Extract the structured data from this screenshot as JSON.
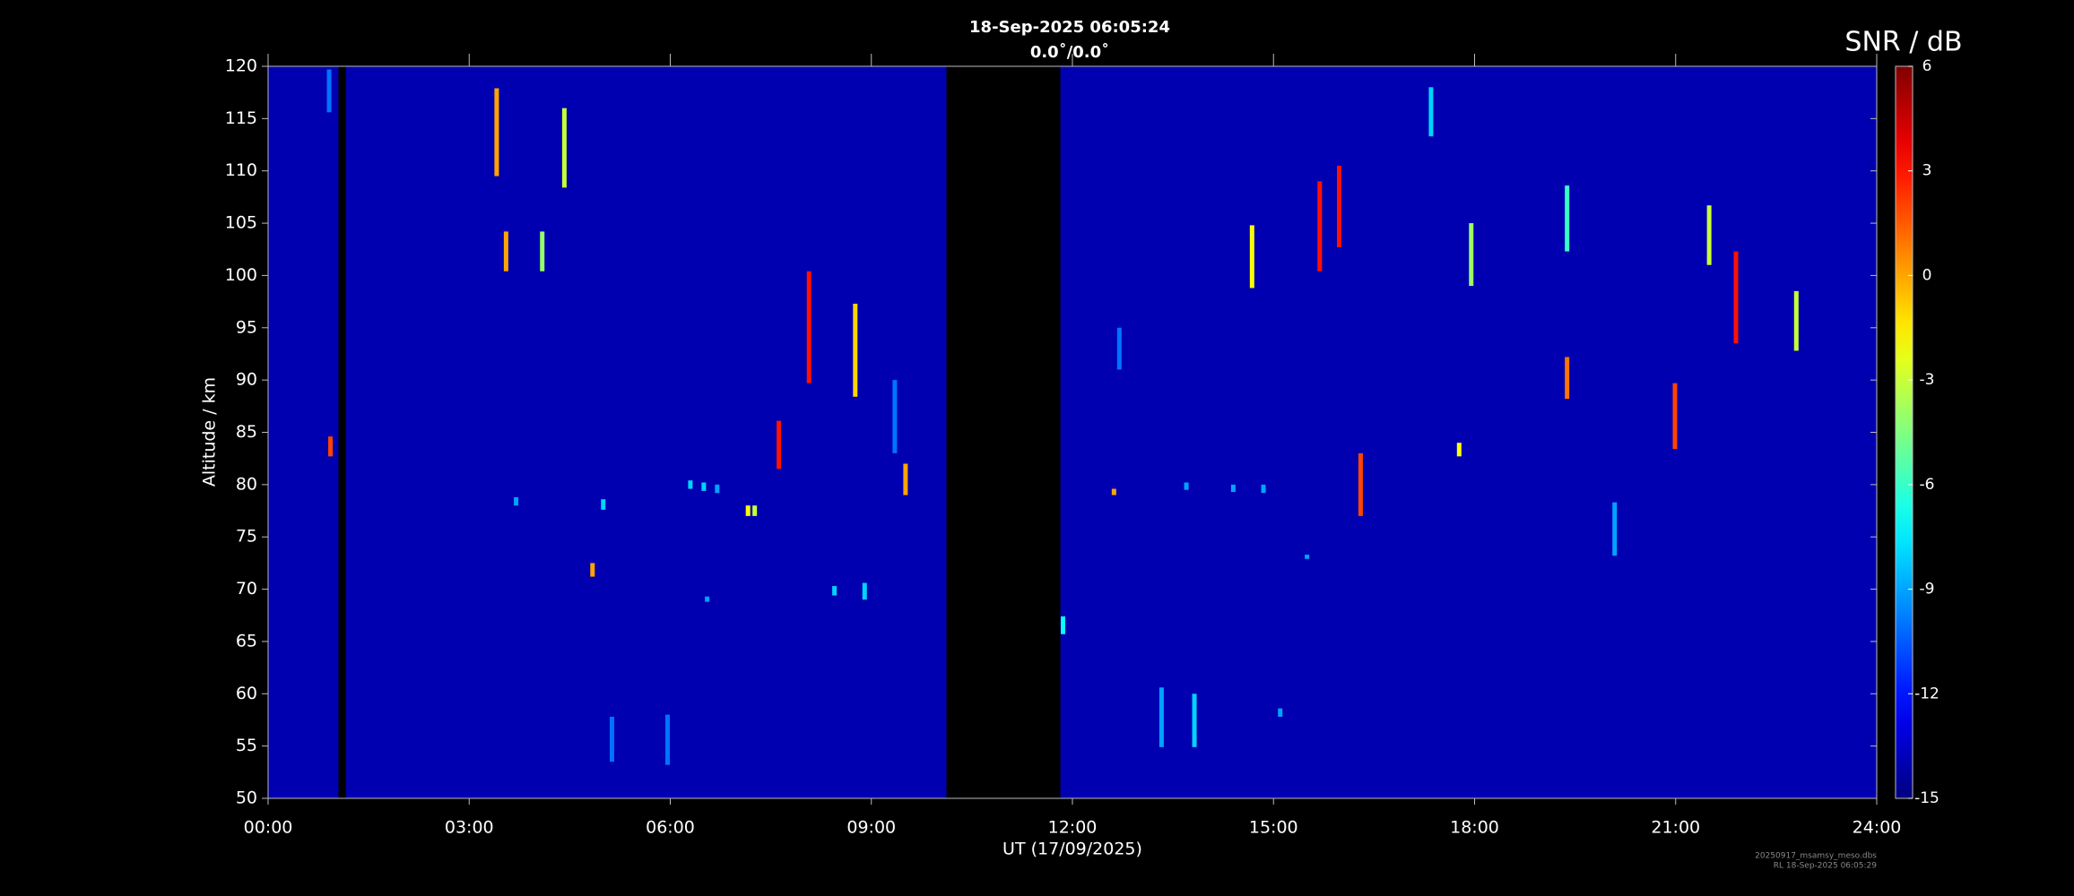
{
  "chart_data": {
    "type": "heatmap",
    "title": "18-Sep-2025 06:05:24",
    "subtitle": "0.0˚/0.0˚",
    "x_label": "UT (17/09/2025)",
    "y_label": "Altitude / km",
    "colorbar_label": "SNR / dB",
    "footer": [
      "20250917_msamsy_meso.dbs",
      "RL 18-Sep-2025 06:05:29"
    ],
    "xlim": [
      0,
      24
    ],
    "xticks": [
      {
        "value": 0,
        "label": "00:00"
      },
      {
        "value": 3,
        "label": "03:00"
      },
      {
        "value": 6,
        "label": "06:00"
      },
      {
        "value": 9,
        "label": "09:00"
      },
      {
        "value": 12,
        "label": "12:00"
      },
      {
        "value": 15,
        "label": "15:00"
      },
      {
        "value": 18,
        "label": "18:00"
      },
      {
        "value": 21,
        "label": "21:00"
      },
      {
        "value": 24,
        "label": "24:00"
      }
    ],
    "ylim": [
      50,
      120
    ],
    "yticks": [
      50,
      55,
      60,
      65,
      70,
      75,
      80,
      85,
      90,
      95,
      100,
      105,
      110,
      115,
      120
    ],
    "clim": [
      -15,
      6
    ],
    "cticks": [
      -15,
      -12,
      -9,
      -6,
      -3,
      0,
      3,
      6
    ],
    "colormap": "jet",
    "background_snr": -14,
    "gaps": [
      [
        1.05,
        1.16
      ],
      [
        10.12,
        11.82
      ]
    ],
    "echoes": [
      {
        "t": 3.41,
        "alt0": 109.5,
        "alt1": 117.9,
        "value": 0
      },
      {
        "t": 4.42,
        "alt0": 108.4,
        "alt1": 116,
        "value": -3
      },
      {
        "t": 4.84,
        "alt0": 71.2,
        "alt1": 72.5,
        "value": 0
      },
      {
        "t": 7.16,
        "alt0": 77,
        "alt1": 78,
        "value": -2
      },
      {
        "t": 7.26,
        "alt0": 77,
        "alt1": 78,
        "value": -3
      },
      {
        "t": 8.07,
        "alt0": 89.7,
        "alt1": 100.4,
        "value": 3
      },
      {
        "t": 8.76,
        "alt0": 88.4,
        "alt1": 97.3,
        "value": -1
      },
      {
        "t": 15.69,
        "alt0": 100.4,
        "alt1": 109,
        "value": 3
      },
      {
        "t": 15.98,
        "alt0": 102.7,
        "alt1": 110.5,
        "value": 3
      },
      {
        "t": 16.3,
        "alt0": 77,
        "alt1": 83,
        "value": 2
      },
      {
        "t": 21.9,
        "alt0": 93.5,
        "alt1": 102.3,
        "value": 3
      },
      {
        "t": 20.99,
        "alt0": 83.4,
        "alt1": 89.7,
        "value": 2
      },
      {
        "t": 14.68,
        "alt0": 98.8,
        "alt1": 104.8,
        "value": -2
      },
      {
        "t": 19.38,
        "alt0": 102.3,
        "alt1": 108.6,
        "value": -6
      },
      {
        "t": 17.35,
        "alt0": 113.3,
        "alt1": 118,
        "value": -8
      },
      {
        "t": 12.62,
        "alt0": 79,
        "alt1": 79.6,
        "value": 0
      },
      {
        "t": 11.86,
        "alt0": 65.7,
        "alt1": 67.4,
        "value": -7
      },
      {
        "t": 15.1,
        "alt0": 57.8,
        "alt1": 58.6,
        "value": -9
      },
      {
        "t": 6.3,
        "alt0": 79.6,
        "alt1": 80.4,
        "value": -8
      },
      {
        "t": 6.5,
        "alt0": 79.4,
        "alt1": 80.2,
        "value": -8
      },
      {
        "t": 6.7,
        "alt0": 79.2,
        "alt1": 80,
        "value": -9
      },
      {
        "t": 5.0,
        "alt0": 77.6,
        "alt1": 78.6,
        "value": -8
      },
      {
        "t": 3.7,
        "alt0": 78,
        "alt1": 78.8,
        "value": -9
      },
      {
        "t": 8.45,
        "alt0": 69.4,
        "alt1": 70.3,
        "value": -8
      },
      {
        "t": 8.9,
        "alt0": 69,
        "alt1": 70.6,
        "value": -8
      },
      {
        "t": 6.55,
        "alt0": 68.8,
        "alt1": 69.3,
        "value": -9
      },
      {
        "t": 13.7,
        "alt0": 79.5,
        "alt1": 80.2,
        "value": -9
      },
      {
        "t": 14.4,
        "alt0": 79.3,
        "alt1": 80,
        "value": -9
      },
      {
        "t": 14.85,
        "alt0": 79.2,
        "alt1": 80,
        "value": -9
      },
      {
        "t": 15.5,
        "alt0": 72.9,
        "alt1": 73.3,
        "value": -9
      },
      {
        "t": 19.38,
        "alt0": 88.2,
        "alt1": 92.2,
        "value": 1
      },
      {
        "t": 17.77,
        "alt0": 82.7,
        "alt1": 84,
        "value": -2
      },
      {
        "t": 7.62,
        "alt0": 81.5,
        "alt1": 86.1,
        "value": 3
      },
      {
        "t": 9.51,
        "alt0": 79,
        "alt1": 82,
        "value": 0
      },
      {
        "t": 0.93,
        "alt0": 82.7,
        "alt1": 84.6,
        "value": 2
      },
      {
        "t": 22.8,
        "alt0": 92.8,
        "alt1": 98.5,
        "value": -3
      },
      {
        "t": 21.5,
        "alt0": 101,
        "alt1": 106.7,
        "value": -3
      },
      {
        "t": 17.95,
        "alt0": 99,
        "alt1": 105,
        "value": -4
      },
      {
        "t": 13.33,
        "alt0": 54.9,
        "alt1": 60.6,
        "value": -9
      },
      {
        "t": 13.82,
        "alt0": 54.9,
        "alt1": 60,
        "value": -8
      },
      {
        "t": 5.13,
        "alt0": 53.5,
        "alt1": 57.8,
        "value": -10
      },
      {
        "t": 5.96,
        "alt0": 53.2,
        "alt1": 58,
        "value": -10
      },
      {
        "t": 20.09,
        "alt0": 73.2,
        "alt1": 78.3,
        "value": -9
      },
      {
        "t": 4.09,
        "alt0": 100.4,
        "alt1": 104.2,
        "value": -4
      },
      {
        "t": 3.55,
        "alt0": 100.4,
        "alt1": 104.2,
        "value": 0
      },
      {
        "t": 0.91,
        "alt0": 115.6,
        "alt1": 119.7,
        "value": -10
      },
      {
        "t": 12.7,
        "alt0": 91,
        "alt1": 95,
        "value": -10
      },
      {
        "t": 9.35,
        "alt0": 83,
        "alt1": 90,
        "value": -10
      }
    ]
  }
}
